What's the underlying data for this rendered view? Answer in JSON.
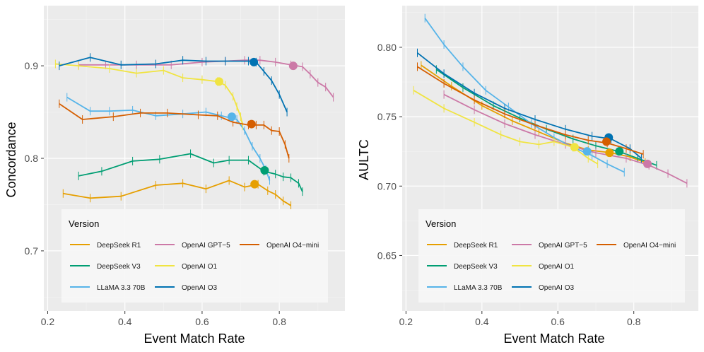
{
  "chart_data": [
    {
      "type": "line",
      "xlabel": "Event Match Rate",
      "ylabel": "Concordance",
      "xlim": [
        0.19,
        0.97
      ],
      "ylim": [
        0.635,
        0.965
      ],
      "xticks": [
        0.2,
        0.4,
        0.6,
        0.8
      ],
      "yticks": [
        0.7,
        0.8,
        0.9
      ],
      "xtick_labels": [
        "0.2",
        "0.4",
        "0.6",
        "0.8"
      ],
      "ytick_labels": [
        "0.7",
        "0.8",
        "0.9"
      ],
      "legend": {
        "title": "Version",
        "entries": [
          "DeepSeek R1",
          "DeepSeek V3",
          "LLaMA 3.3 70B",
          "OpenAI GPT−5",
          "OpenAI O1",
          "OpenAI O3",
          "OpenAI O4−mini"
        ]
      },
      "series": [
        {
          "name": "DeepSeek R1",
          "color": "#E69F00",
          "x": [
            0.24,
            0.31,
            0.39,
            0.48,
            0.55,
            0.61,
            0.67,
            0.71,
            0.745,
            0.77,
            0.79,
            0.81,
            0.83
          ],
          "y": [
            0.762,
            0.757,
            0.759,
            0.771,
            0.773,
            0.767,
            0.776,
            0.769,
            0.772,
            0.765,
            0.761,
            0.754,
            0.749
          ],
          "marker": [
            0.736,
            0.772
          ]
        },
        {
          "name": "DeepSeek V3",
          "color": "#009E73",
          "x": [
            0.28,
            0.34,
            0.42,
            0.49,
            0.57,
            0.63,
            0.67,
            0.72,
            0.76,
            0.79,
            0.81,
            0.83,
            0.85,
            0.86
          ],
          "y": [
            0.781,
            0.786,
            0.797,
            0.799,
            0.805,
            0.795,
            0.798,
            0.798,
            0.786,
            0.783,
            0.78,
            0.779,
            0.773,
            0.764
          ],
          "marker": [
            0.762,
            0.787
          ]
        },
        {
          "name": "LLaMA 3.3 70B",
          "color": "#56B4E9",
          "x": [
            0.25,
            0.31,
            0.36,
            0.42,
            0.48,
            0.55,
            0.61,
            0.65,
            0.69,
            0.71,
            0.73,
            0.75,
            0.765,
            0.775
          ],
          "y": [
            0.866,
            0.851,
            0.851,
            0.852,
            0.846,
            0.848,
            0.85,
            0.846,
            0.842,
            0.83,
            0.813,
            0.8,
            0.788,
            0.776
          ],
          "marker": [
            0.677,
            0.845
          ]
        },
        {
          "name": "OpenAI GPT−5",
          "color": "#CC79A7",
          "x": [
            0.28,
            0.35,
            0.43,
            0.52,
            0.6,
            0.66,
            0.71,
            0.75,
            0.79,
            0.83,
            0.86,
            0.88,
            0.9,
            0.92,
            0.94
          ],
          "y": [
            0.901,
            0.901,
            0.901,
            0.901,
            0.904,
            0.905,
            0.906,
            0.906,
            0.904,
            0.901,
            0.899,
            0.891,
            0.882,
            0.877,
            0.866
          ],
          "marker": [
            0.836,
            0.9
          ]
        },
        {
          "name": "OpenAI O1",
          "color": "#F0E442",
          "x": [
            0.22,
            0.28,
            0.36,
            0.43,
            0.5,
            0.55,
            0.6,
            0.64,
            0.66,
            0.68,
            0.69,
            0.7,
            0.705
          ],
          "y": [
            0.902,
            0.9,
            0.897,
            0.892,
            0.895,
            0.887,
            0.885,
            0.883,
            0.879,
            0.867,
            0.856,
            0.845,
            0.835
          ],
          "marker": [
            0.644,
            0.883
          ]
        },
        {
          "name": "OpenAI O3",
          "color": "#0072B2",
          "x": [
            0.23,
            0.31,
            0.39,
            0.48,
            0.55,
            0.61,
            0.66,
            0.72,
            0.74,
            0.76,
            0.78,
            0.8,
            0.82
          ],
          "y": [
            0.9,
            0.909,
            0.901,
            0.902,
            0.906,
            0.905,
            0.905,
            0.905,
            0.904,
            0.894,
            0.884,
            0.869,
            0.85
          ],
          "marker": [
            0.734,
            0.904
          ]
        },
        {
          "name": "OpenAI O4−mini",
          "color": "#D55E00",
          "x": [
            0.23,
            0.29,
            0.37,
            0.44,
            0.51,
            0.59,
            0.64,
            0.68,
            0.72,
            0.74,
            0.76,
            0.78,
            0.8,
            0.815,
            0.825
          ],
          "y": [
            0.859,
            0.842,
            0.845,
            0.849,
            0.849,
            0.847,
            0.846,
            0.839,
            0.836,
            0.836,
            0.836,
            0.83,
            0.829,
            0.815,
            0.8
          ],
          "marker": [
            0.728,
            0.837
          ]
        }
      ]
    },
    {
      "type": "line",
      "xlabel": "Event Match Rate",
      "ylabel": "AULTC",
      "xlim": [
        0.19,
        0.97
      ],
      "ylim": [
        0.61,
        0.83
      ],
      "xticks": [
        0.2,
        0.4,
        0.6,
        0.8
      ],
      "yticks": [
        0.65,
        0.7,
        0.75,
        0.8
      ],
      "xtick_labels": [
        "0.2",
        "0.4",
        "0.6",
        "0.8"
      ],
      "ytick_labels": [
        "0.65",
        "0.70",
        "0.75",
        "0.80"
      ],
      "legend": {
        "title": "Version",
        "entries": [
          "DeepSeek R1",
          "DeepSeek V3",
          "LLaMA 3.3 70B",
          "OpenAI GPT−5",
          "OpenAI O1",
          "OpenAI O3",
          "OpenAI O4−mini"
        ]
      },
      "series": [
        {
          "name": "DeepSeek R1",
          "color": "#E69F00",
          "x": [
            0.24,
            0.32,
            0.4,
            0.48,
            0.55,
            0.62,
            0.68,
            0.74,
            0.79,
            0.83
          ],
          "y": [
            0.787,
            0.772,
            0.758,
            0.747,
            0.739,
            0.731,
            0.726,
            0.724,
            0.721,
            0.717
          ],
          "marker": [
            0.736,
            0.724
          ]
        },
        {
          "name": "DeepSeek V3",
          "color": "#009E73",
          "x": [
            0.28,
            0.35,
            0.43,
            0.5,
            0.57,
            0.64,
            0.7,
            0.76,
            0.81,
            0.86
          ],
          "y": [
            0.784,
            0.771,
            0.758,
            0.749,
            0.741,
            0.734,
            0.729,
            0.725,
            0.72,
            0.715
          ],
          "marker": [
            0.762,
            0.725
          ]
        },
        {
          "name": "LLaMA 3.3 70B",
          "color": "#56B4E9",
          "x": [
            0.25,
            0.3,
            0.35,
            0.41,
            0.47,
            0.53,
            0.59,
            0.64,
            0.69,
            0.73,
            0.775
          ],
          "y": [
            0.821,
            0.802,
            0.786,
            0.769,
            0.757,
            0.745,
            0.735,
            0.728,
            0.722,
            0.716,
            0.71
          ],
          "marker": [
            0.677,
            0.725
          ]
        },
        {
          "name": "OpenAI GPT−5",
          "color": "#CC79A7",
          "x": [
            0.3,
            0.38,
            0.46,
            0.54,
            0.62,
            0.7,
            0.78,
            0.84,
            0.89,
            0.94
          ],
          "y": [
            0.766,
            0.755,
            0.745,
            0.737,
            0.73,
            0.724,
            0.72,
            0.715,
            0.709,
            0.702
          ],
          "marker": [
            0.836,
            0.716
          ]
        },
        {
          "name": "OpenAI O1",
          "color": "#F0E442",
          "x": [
            0.22,
            0.3,
            0.38,
            0.45,
            0.5,
            0.55,
            0.59,
            0.64,
            0.68,
            0.705
          ],
          "y": [
            0.769,
            0.756,
            0.746,
            0.737,
            0.732,
            0.73,
            0.732,
            0.728,
            0.72,
            0.716
          ],
          "marker": [
            0.644,
            0.728
          ]
        },
        {
          "name": "OpenAI O3",
          "color": "#0072B2",
          "x": [
            0.23,
            0.3,
            0.38,
            0.46,
            0.54,
            0.62,
            0.69,
            0.74,
            0.79,
            0.82
          ],
          "y": [
            0.796,
            0.781,
            0.767,
            0.756,
            0.748,
            0.741,
            0.736,
            0.734,
            0.727,
            0.72
          ],
          "marker": [
            0.734,
            0.735
          ]
        },
        {
          "name": "OpenAI O4−mini",
          "color": "#D55E00",
          "x": [
            0.23,
            0.3,
            0.38,
            0.46,
            0.54,
            0.62,
            0.68,
            0.73,
            0.78,
            0.825
          ],
          "y": [
            0.786,
            0.774,
            0.762,
            0.752,
            0.744,
            0.737,
            0.733,
            0.731,
            0.727,
            0.723
          ],
          "marker": [
            0.728,
            0.732
          ]
        }
      ]
    }
  ]
}
